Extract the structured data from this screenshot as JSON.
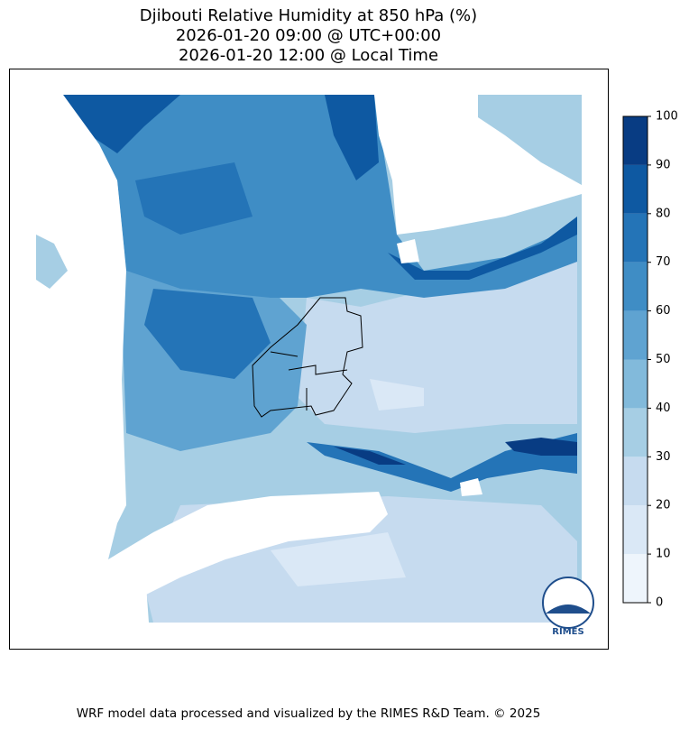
{
  "title": [
    "Djibouti Relative Humidity at 850 hPa (%)",
    "2026-01-20 09:00 @ UTC+00:00",
    "2026-01-20 12:00 @ Local Time"
  ],
  "colorbar": {
    "lim": [
      0,
      100
    ],
    "ticks": [
      0,
      10,
      20,
      30,
      40,
      50,
      60,
      70,
      80,
      90,
      100
    ],
    "colors": [
      "#eef5fc",
      "#dae8f6",
      "#c6dbef",
      "#a6cee4",
      "#82badb",
      "#5fa3d1",
      "#3f8dc5",
      "#2474b7",
      "#0e59a2",
      "#083c83"
    ]
  },
  "logo_text": "RIMES",
  "footer": "WRF model data processed and visualized by the RIMES R&D Team. © 2025"
}
